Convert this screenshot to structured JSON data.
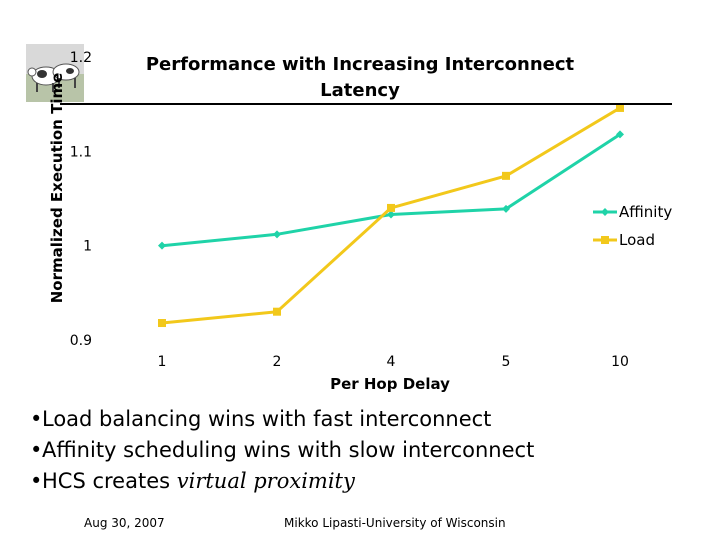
{
  "chart_data": {
    "type": "line",
    "title": "Performance with Increasing Interconnect Latency",
    "xlabel": "Per Hop Delay",
    "ylabel": "Normalized Execution Time",
    "categories": [
      "1",
      "2",
      "4",
      "5",
      "10"
    ],
    "yticks": [
      "1.2",
      "1.1",
      "1",
      "0.9"
    ],
    "ylim": [
      0.9,
      1.2
    ],
    "grid": false,
    "legend_position": "right",
    "series": [
      {
        "name": "Affinity",
        "values": [
          1.0,
          1.012,
          1.033,
          1.039,
          1.118
        ],
        "color": "#1fd3a8",
        "marker": "diamond"
      },
      {
        "name": "Load",
        "values": [
          0.918,
          0.93,
          1.04,
          1.074,
          1.146
        ],
        "color": "#f2c81b",
        "marker": "square"
      }
    ]
  },
  "bullets": [
    {
      "text": "Load balancing wins with fast interconnect"
    },
    {
      "text": "Affinity scheduling wins with slow interconnect"
    },
    {
      "text": "HCS creates ",
      "italic": "virtual proximity"
    }
  ],
  "bullet_mark": "•",
  "footer": {
    "date": "Aug 30, 2007",
    "author": "Mikko Lipasti-University of Wisconsin"
  },
  "logo": {
    "icon": "cow-logo-icon"
  }
}
